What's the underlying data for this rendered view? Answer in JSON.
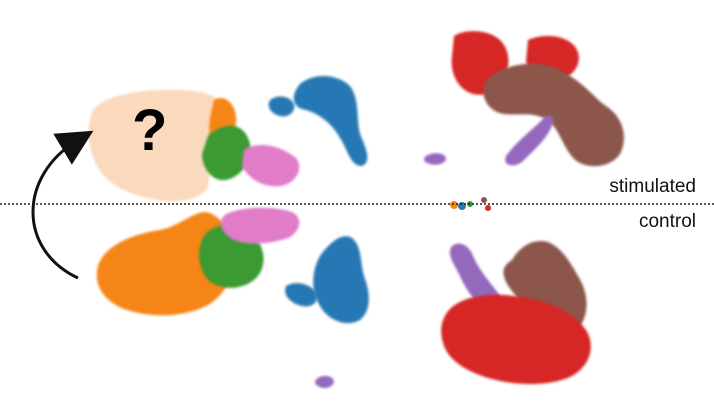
{
  "labels": {
    "stimulated": "stimulated",
    "control": "control",
    "unknown_marker": "?"
  },
  "colors": {
    "orange": "#f58518",
    "peach": "#fad9bd",
    "green": "#3a9a32",
    "pink": "#e07cc8",
    "blue": "#2778b4",
    "red": "#d62728",
    "brown": "#8c564b",
    "purple": "#9467bd",
    "divider": "#222222",
    "arrow": "#111111"
  },
  "clusters": [
    {
      "name": "orange-cluster",
      "color": "orange",
      "condition": "control"
    },
    {
      "name": "peach-predicted-cluster",
      "color": "peach",
      "condition": "stimulated"
    },
    {
      "name": "green-cluster",
      "color": "green",
      "condition": "both"
    },
    {
      "name": "pink-cluster",
      "color": "pink",
      "condition": "both"
    },
    {
      "name": "blue-cluster",
      "color": "blue",
      "condition": "both"
    },
    {
      "name": "red-cluster",
      "color": "red",
      "condition": "both"
    },
    {
      "name": "brown-cluster",
      "color": "brown",
      "condition": "both"
    },
    {
      "name": "purple-cluster",
      "color": "purple",
      "condition": "both"
    }
  ]
}
